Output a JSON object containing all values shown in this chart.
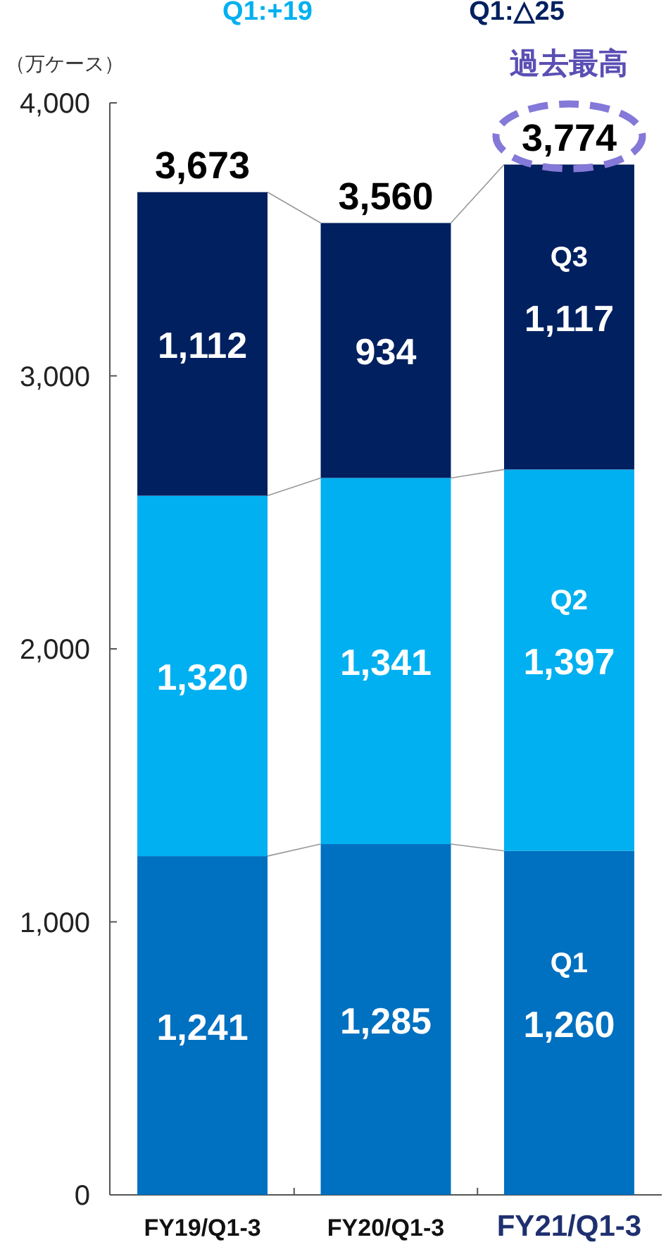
{
  "chart_data": {
    "type": "bar",
    "stacked": true,
    "ylabel": "（万ケース）",
    "categories": [
      "FY19/Q1-3",
      "FY20/Q1-3",
      "FY21/Q1-3"
    ],
    "series": [
      {
        "name": "Q1",
        "color": "#0070c0",
        "values": [
          1241,
          1285,
          1260
        ],
        "value_labels": [
          "1,241",
          "1,285",
          "1,260"
        ]
      },
      {
        "name": "Q2",
        "color": "#00b0f0",
        "values": [
          1320,
          1341,
          1397
        ],
        "value_labels": [
          "1,320",
          "1,341",
          "1,397"
        ]
      },
      {
        "name": "Q3",
        "color": "#002060",
        "values": [
          1112,
          934,
          1117
        ],
        "value_labels": [
          "1,112",
          "934",
          "1,117"
        ]
      }
    ],
    "totals": [
      "3,673",
      "3,560",
      "3,774"
    ],
    "ylim": [
      0,
      4000
    ],
    "yticks": [
      0,
      {
        "value": 1000,
        "label": "1,000"
      },
      {
        "value": 2000,
        "label": "2,000"
      },
      {
        "value": 3000,
        "label": "3,000"
      },
      {
        "value": 4000,
        "label": "4,000"
      }
    ],
    "grid": false,
    "annotations": [
      "Q1:+19",
      "Q1:△25",
      "過去最高"
    ]
  }
}
